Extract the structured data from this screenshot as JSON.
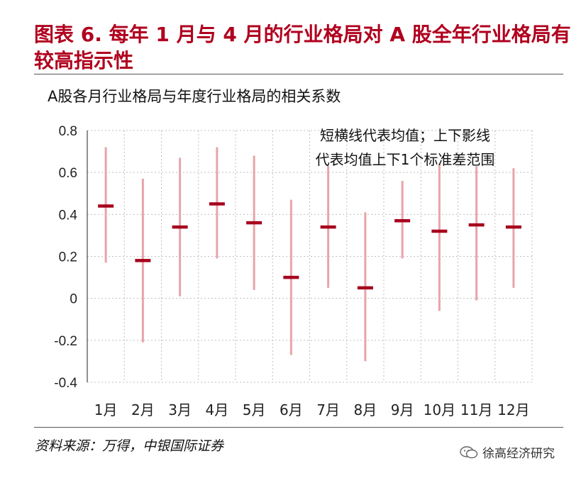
{
  "figure_title": "图表 6.  每年 1 月与 4 月的行业格局对 A 股全年行业格局有较高指示性",
  "source_text": "资料来源：万得，中银国际证券",
  "watermark_text": "徐高经济研究",
  "colors": {
    "mean_mark": "#a6001d",
    "range_line": "#e8a4a9",
    "title": "#b0001e",
    "grid": "#bfbfbf"
  },
  "chart_data": {
    "type": "errorbar",
    "title": "A股各月行业格局与年度行业格局的相关系数",
    "annotation": [
      "短横线代表均值；上下影线",
      "代表均值上下1个标准差范围"
    ],
    "categories": [
      "1月",
      "2月",
      "3月",
      "4月",
      "5月",
      "6月",
      "7月",
      "8月",
      "9月",
      "10月",
      "11月",
      "12月"
    ],
    "mean": [
      0.44,
      0.18,
      0.34,
      0.45,
      0.36,
      0.1,
      0.34,
      0.05,
      0.37,
      0.32,
      0.35,
      0.34
    ],
    "upper": [
      0.72,
      0.57,
      0.67,
      0.72,
      0.68,
      0.47,
      0.63,
      0.41,
      0.56,
      0.64,
      0.63,
      0.62
    ],
    "lower": [
      0.17,
      -0.21,
      0.01,
      0.19,
      0.04,
      -0.27,
      0.05,
      -0.3,
      0.19,
      -0.06,
      -0.01,
      0.05
    ],
    "ylim": [
      -0.4,
      0.8
    ],
    "yticks": [
      "-0.4",
      "-0.2",
      "0",
      "0.2",
      "0.4",
      "0.6",
      "0.8"
    ],
    "grid": true
  }
}
